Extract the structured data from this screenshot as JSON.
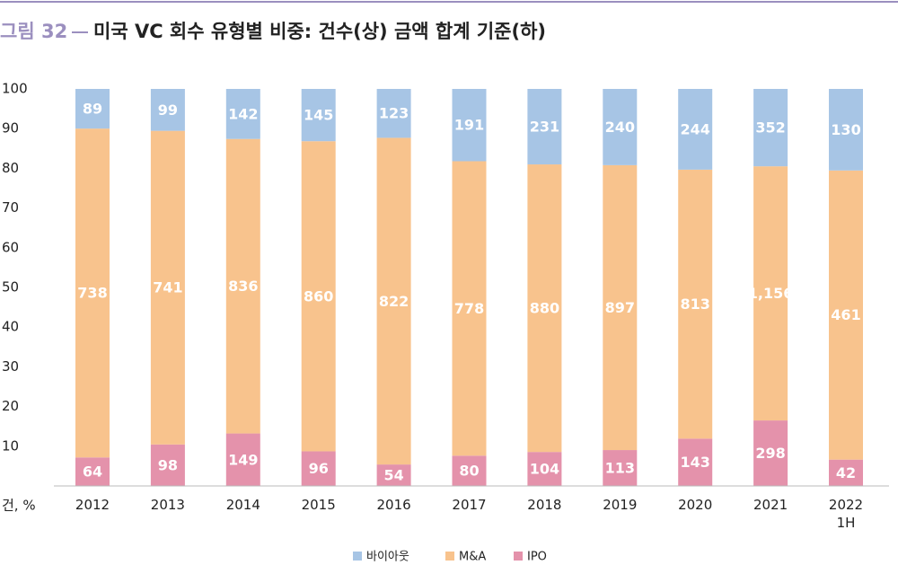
{
  "chart_data": {
    "type": "bar",
    "stacking": "percent",
    "figure_label": "그림 32",
    "title": "미국 VC 회수 유형별 비중: 건수(상) 금액 합계 기준(하)",
    "y_axis_label": "건, %",
    "categories": [
      "2012",
      "2013",
      "2014",
      "2015",
      "2016",
      "2017",
      "2018",
      "2019",
      "2020",
      "2021",
      "2022\n1H"
    ],
    "series": [
      {
        "name": "바이아웃",
        "color": "#a7c5e5",
        "values": [
          89,
          99,
          142,
          145,
          123,
          191,
          231,
          240,
          244,
          352,
          130
        ]
      },
      {
        "name": "M&A",
        "color": "#f8c38d",
        "values": [
          738,
          741,
          836,
          860,
          822,
          778,
          880,
          897,
          813,
          1156,
          461
        ],
        "value_labels": [
          "738",
          "741",
          "836",
          "860",
          "822",
          "778",
          "880",
          "897",
          "813",
          "1,156",
          "461"
        ]
      },
      {
        "name": "IPO",
        "color": "#e492ab",
        "values": [
          64,
          98,
          149,
          96,
          54,
          80,
          104,
          113,
          143,
          298,
          42
        ]
      }
    ],
    "ylim": [
      0,
      100
    ],
    "yticks": [
      10,
      20,
      30,
      40,
      50,
      60,
      70,
      80,
      90,
      100
    ],
    "grid": false,
    "legend": "bottom"
  }
}
